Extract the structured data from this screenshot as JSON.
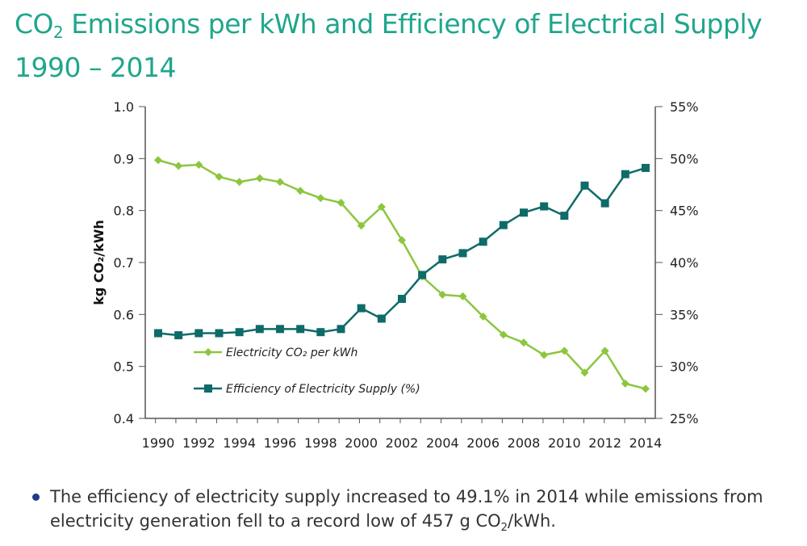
{
  "title": {
    "line1_prefix": "CO",
    "line1_sub": "2",
    "line1_rest": " Emissions per kWh and Efficiency of Electrical Supply",
    "line2": "1990 – 2014"
  },
  "bullet": {
    "text_before": "The efficiency of electricity supply increased to 49.1% in 2014 while emissions from electricity generation fell to a record low of 457 g CO",
    "text_sub": "2",
    "text_after": "/kWh."
  },
  "chart_data": {
    "type": "line",
    "title": "",
    "x": [
      1990,
      1991,
      1992,
      1993,
      1994,
      1995,
      1996,
      1997,
      1998,
      1999,
      2000,
      2001,
      2002,
      2003,
      2004,
      2005,
      2006,
      2007,
      2008,
      2009,
      2010,
      2011,
      2012,
      2013,
      2014
    ],
    "x_tick_labels": [
      "1990",
      "1992",
      "1994",
      "1996",
      "1998",
      "2000",
      "2002",
      "2004",
      "2006",
      "2008",
      "2010",
      "2012",
      "2014"
    ],
    "ylabel": "kg CO₂/kWh",
    "ylim": [
      0.4,
      1.0
    ],
    "y_tick_labels": [
      "1.0",
      "0.9",
      "0.8",
      "0.7",
      "0.6",
      "0.5",
      "0.4"
    ],
    "y2lim": [
      25,
      55
    ],
    "y2_tick_labels": [
      "55%",
      "50%",
      "45%",
      "40%",
      "35%",
      "30%",
      "25%"
    ],
    "grid": false,
    "legend_placement": "lower-left",
    "series": [
      {
        "name": "Electricity CO₂ per kWh",
        "axis": "left",
        "marker": "diamond",
        "color": "#8cc63f",
        "values": [
          0.897,
          0.886,
          0.888,
          0.865,
          0.855,
          0.862,
          0.855,
          0.838,
          0.824,
          0.815,
          0.771,
          0.807,
          0.743,
          0.673,
          0.638,
          0.635,
          0.596,
          0.561,
          0.546,
          0.522,
          0.53,
          0.488,
          0.53,
          0.467,
          0.457
        ]
      },
      {
        "name": "Efficiency of Electricity Supply (%)",
        "axis": "right",
        "marker": "square",
        "color": "#0e6b68",
        "values": [
          33.2,
          33.0,
          33.2,
          33.2,
          33.3,
          33.6,
          33.6,
          33.6,
          33.3,
          33.6,
          35.6,
          34.6,
          36.5,
          38.8,
          40.3,
          40.9,
          42.0,
          43.6,
          44.8,
          45.4,
          44.5,
          47.4,
          45.7,
          48.5,
          49.1
        ]
      }
    ]
  }
}
